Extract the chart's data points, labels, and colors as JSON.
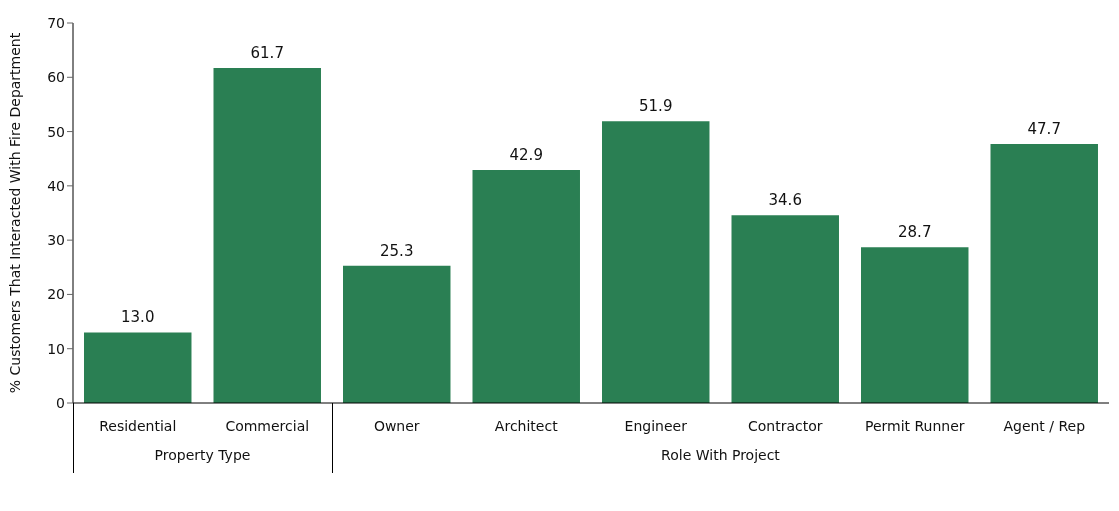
{
  "chart_data": {
    "type": "bar",
    "ylabel": "% Customers That Interacted With Fire Department",
    "categories": [
      "Residential",
      "Commercial",
      "Owner",
      "Architect",
      "Engineer",
      "Contractor",
      "Permit Runner",
      "Agent / Rep"
    ],
    "values": [
      13.0,
      61.7,
      25.3,
      42.9,
      51.9,
      34.6,
      28.7,
      47.7
    ],
    "value_labels": [
      "13.0",
      "61.7",
      "25.3",
      "42.9",
      "51.9",
      "34.6",
      "28.7",
      "47.7"
    ],
    "color": "#2a7f53",
    "ylim": [
      0,
      70
    ],
    "yticks": [
      0,
      10,
      20,
      30,
      40,
      50,
      60,
      70
    ],
    "annotations": [
      "Property Type",
      "Role With Project"
    ]
  }
}
